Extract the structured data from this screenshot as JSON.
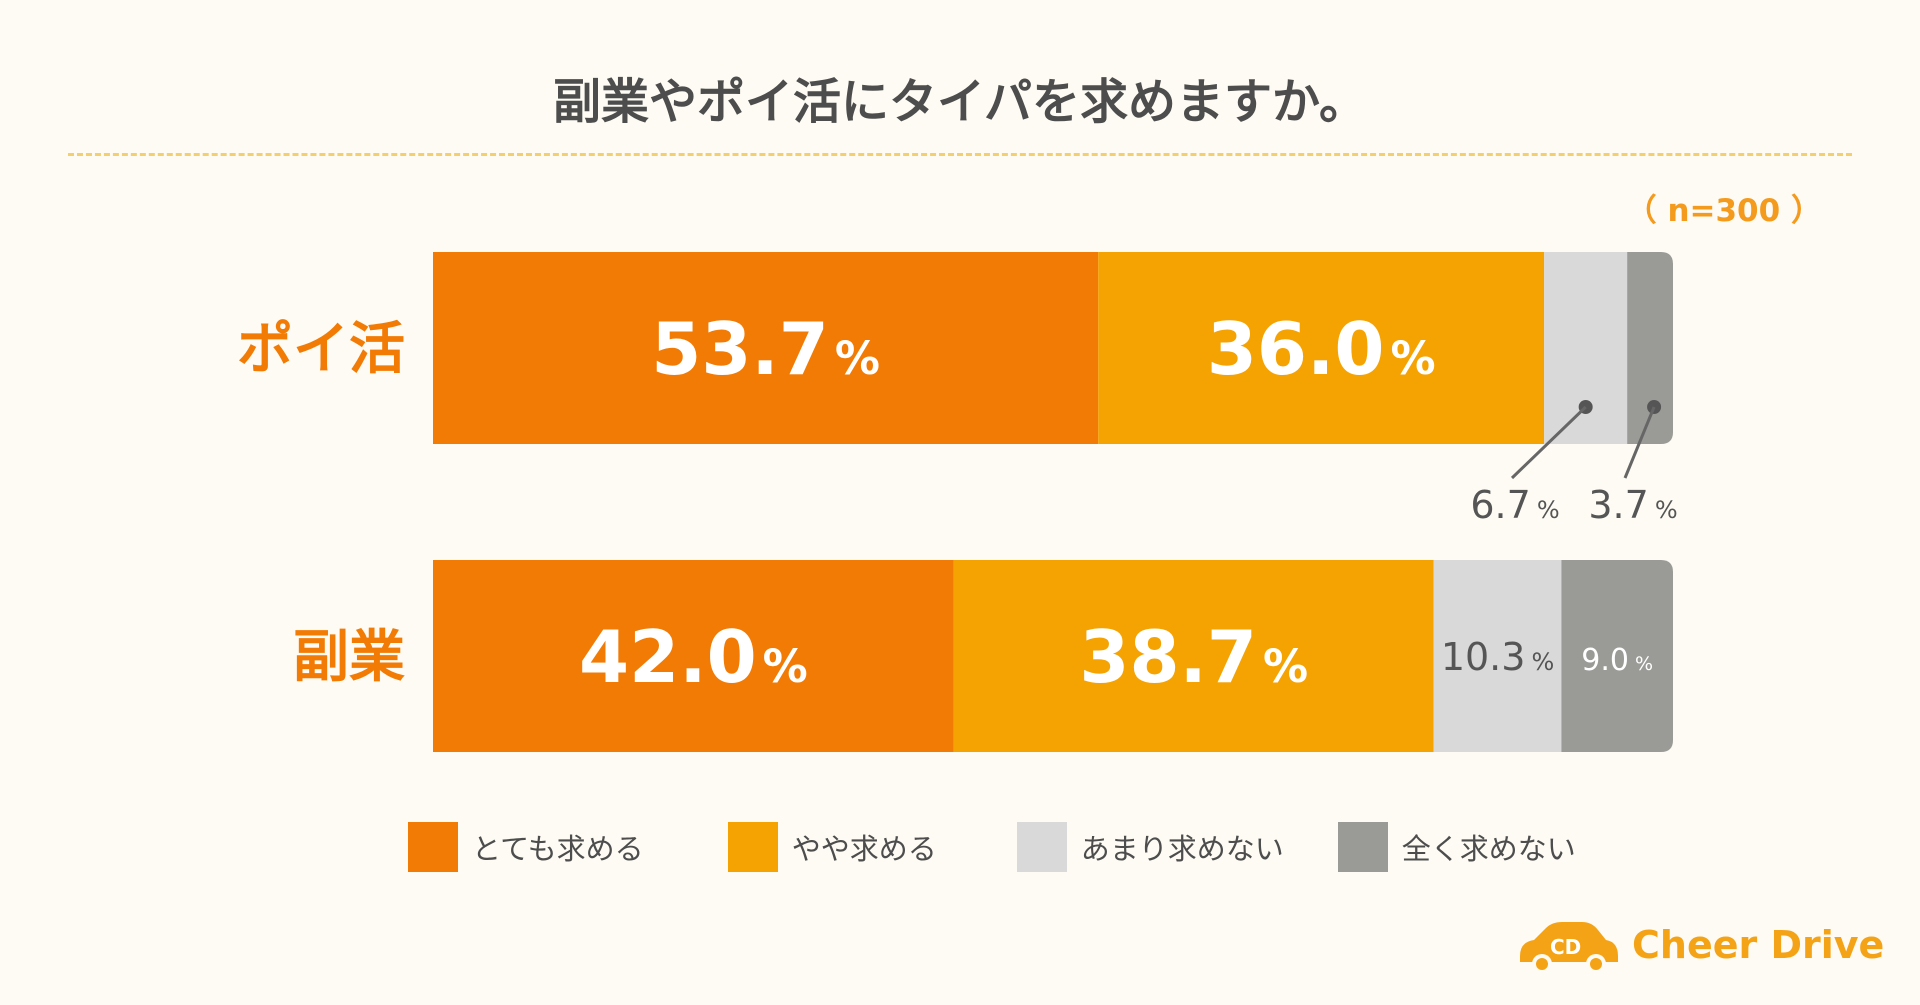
{
  "chart_data": {
    "type": "bar",
    "orientation": "horizontal",
    "stacked": true,
    "title": "副業やポイ活にタイパを求めますか。",
    "sample_size": "（ n=300 ）",
    "categories": [
      "ポイ活",
      "副業"
    ],
    "series": [
      {
        "name": "とても求める",
        "color": "#f27b05",
        "values": [
          53.7,
          42.0
        ],
        "labels": [
          "53.7",
          "42.0"
        ]
      },
      {
        "name": "やや求める",
        "color": "#f5a303",
        "values": [
          36.0,
          38.7
        ],
        "labels": [
          "36.0",
          "38.7"
        ]
      },
      {
        "name": "あまり求めない",
        "color": "#d9d9d9",
        "values": [
          6.7,
          10.3
        ],
        "labels": [
          "6.7",
          "10.3"
        ]
      },
      {
        "name": "全く求めない",
        "color": "#9a9b96",
        "values": [
          3.7,
          9.0
        ],
        "labels": [
          "3.7",
          "9.0"
        ]
      }
    ],
    "value_unit": "%",
    "xlim": [
      0,
      100
    ],
    "legend_position": "bottom"
  },
  "brand": {
    "name": "Cheer Drive",
    "mark": "CD",
    "color": "#f5a316"
  }
}
